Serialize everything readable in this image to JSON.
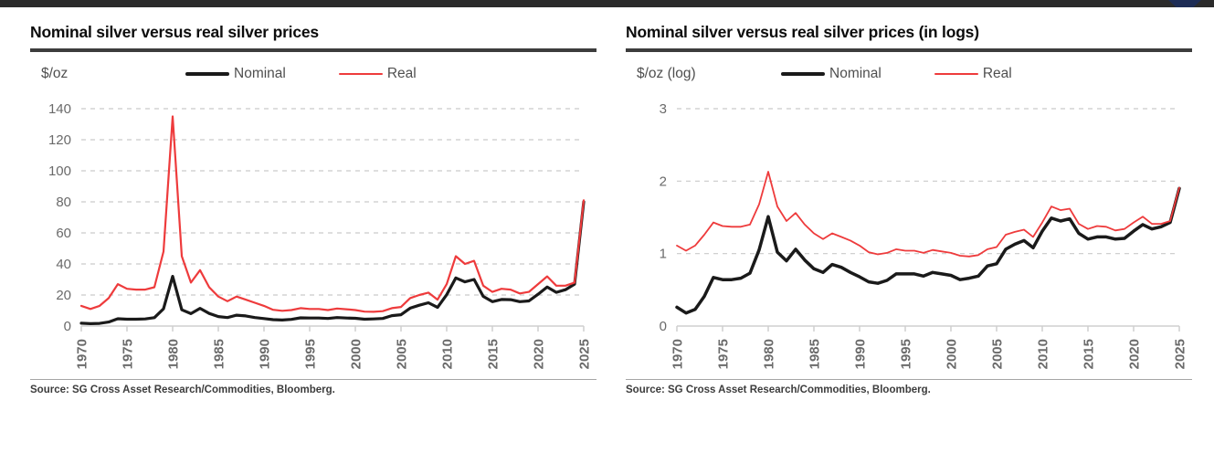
{
  "top_bar": {
    "color": "#2b2b2b",
    "accent_color": "#1d2c55"
  },
  "chart_data": [
    {
      "type": "line",
      "title": "Nominal silver versus real silver prices",
      "unit_label": "$/oz",
      "ylabel": "$/oz",
      "ylim": [
        0,
        140
      ],
      "yticks": [
        0,
        20,
        40,
        60,
        80,
        100,
        120,
        140
      ],
      "grid": "dashed-horizontal",
      "legend_position": "top",
      "x_tick_interval": 5,
      "x": [
        1970,
        1971,
        1972,
        1973,
        1974,
        1975,
        1976,
        1977,
        1978,
        1979,
        1980,
        1981,
        1982,
        1983,
        1984,
        1985,
        1986,
        1987,
        1988,
        1989,
        1990,
        1991,
        1992,
        1993,
        1994,
        1995,
        1996,
        1997,
        1998,
        1999,
        2000,
        2001,
        2002,
        2003,
        2004,
        2005,
        2006,
        2007,
        2008,
        2009,
        2010,
        2011,
        2012,
        2013,
        2014,
        2015,
        2016,
        2017,
        2018,
        2019,
        2020,
        2021,
        2022,
        2023,
        2024,
        2025
      ],
      "series": [
        {
          "name": "Nominal",
          "color": "#1a1a1a",
          "width": 3.2,
          "values": [
            1.8,
            1.5,
            1.7,
            2.6,
            4.7,
            4.4,
            4.4,
            4.6,
            5.4,
            11.1,
            32,
            10.5,
            8,
            11.4,
            8.1,
            6.1,
            5.5,
            7,
            6.5,
            5.5,
            4.8,
            4.1,
            3.9,
            4.3,
            5.3,
            5.2,
            5.2,
            4.9,
            5.5,
            5.2,
            5,
            4.4,
            4.6,
            4.9,
            6.7,
            7.3,
            11.5,
            13.4,
            15,
            12,
            20.2,
            31,
            28.5,
            30,
            19.1,
            15.7,
            17.1,
            17,
            15.7,
            16.2,
            20.5,
            25.1,
            21.7,
            23.4,
            27,
            80
          ]
        },
        {
          "name": "Real",
          "color": "#ee3b3c",
          "width": 2.2,
          "values": [
            13,
            11,
            13,
            18,
            27,
            24,
            23.5,
            23.5,
            25,
            48,
            135,
            45,
            28,
            36,
            25,
            19,
            16,
            19,
            17,
            15,
            13,
            10.5,
            9.8,
            10.3,
            11.5,
            11,
            11,
            10.3,
            11.3,
            10.8,
            10.3,
            9.3,
            9.2,
            9.6,
            11.5,
            12.3,
            18,
            20,
            21.5,
            17,
            27,
            45,
            40,
            42,
            26,
            22,
            24,
            23.5,
            21,
            22,
            27,
            32,
            26,
            26,
            28,
            81
          ]
        }
      ],
      "source": "Source: SG Cross Asset Research/Commodities, Bloomberg."
    },
    {
      "type": "line",
      "title": "Nominal silver versus real silver prices (in logs)",
      "unit_label": "$/oz (log)",
      "ylabel": "$/oz (log)",
      "ylim": [
        0,
        3
      ],
      "yticks": [
        0,
        1,
        2,
        3
      ],
      "grid": "dashed-horizontal",
      "legend_position": "top",
      "x_tick_interval": 5,
      "x": [
        1970,
        1971,
        1972,
        1973,
        1974,
        1975,
        1976,
        1977,
        1978,
        1979,
        1980,
        1981,
        1982,
        1983,
        1984,
        1985,
        1986,
        1987,
        1988,
        1989,
        1990,
        1991,
        1992,
        1993,
        1994,
        1995,
        1996,
        1997,
        1998,
        1999,
        2000,
        2001,
        2002,
        2003,
        2004,
        2005,
        2006,
        2007,
        2008,
        2009,
        2010,
        2011,
        2012,
        2013,
        2014,
        2015,
        2016,
        2017,
        2018,
        2019,
        2020,
        2021,
        2022,
        2023,
        2024,
        2025
      ],
      "series": [
        {
          "name": "Nominal",
          "color": "#1a1a1a",
          "width": 3.5,
          "values": [
            0.26,
            0.18,
            0.23,
            0.41,
            0.67,
            0.64,
            0.64,
            0.66,
            0.73,
            1.05,
            1.51,
            1.02,
            0.9,
            1.06,
            0.91,
            0.79,
            0.74,
            0.85,
            0.81,
            0.74,
            0.68,
            0.61,
            0.59,
            0.63,
            0.72,
            0.72,
            0.72,
            0.69,
            0.74,
            0.72,
            0.7,
            0.64,
            0.66,
            0.69,
            0.83,
            0.86,
            1.06,
            1.13,
            1.18,
            1.08,
            1.31,
            1.49,
            1.45,
            1.48,
            1.28,
            1.2,
            1.23,
            1.23,
            1.2,
            1.21,
            1.31,
            1.4,
            1.34,
            1.37,
            1.43,
            1.9
          ]
        },
        {
          "name": "Real",
          "color": "#ee3b3c",
          "width": 1.8,
          "values": [
            1.11,
            1.04,
            1.11,
            1.26,
            1.43,
            1.38,
            1.37,
            1.37,
            1.4,
            1.68,
            2.13,
            1.65,
            1.45,
            1.56,
            1.4,
            1.28,
            1.2,
            1.28,
            1.23,
            1.18,
            1.11,
            1.02,
            0.99,
            1.01,
            1.06,
            1.04,
            1.04,
            1.01,
            1.05,
            1.03,
            1.01,
            0.97,
            0.96,
            0.98,
            1.06,
            1.09,
            1.26,
            1.3,
            1.33,
            1.23,
            1.43,
            1.65,
            1.6,
            1.62,
            1.41,
            1.34,
            1.38,
            1.37,
            1.32,
            1.34,
            1.43,
            1.51,
            1.41,
            1.41,
            1.45,
            1.91
          ]
        }
      ],
      "source": "Source: SG Cross Asset Research/Commodities, Bloomberg."
    }
  ]
}
